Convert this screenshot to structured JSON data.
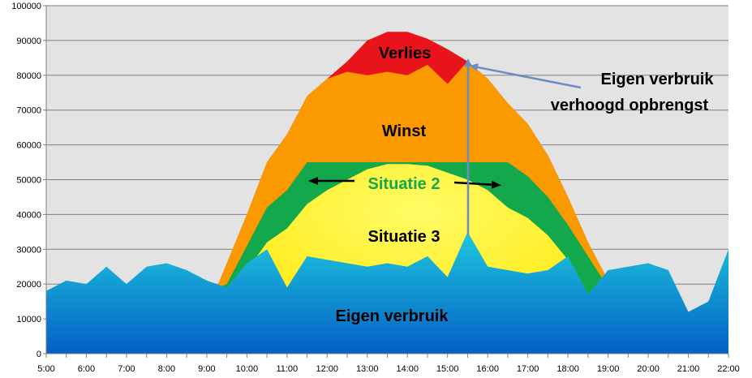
{
  "chart_data": {
    "type": "area",
    "title": "",
    "xlabel": "",
    "ylabel": "",
    "ylim": [
      0,
      100000
    ],
    "xlim": [
      "5:00",
      "22:00"
    ],
    "grid": true,
    "legend": "none",
    "y_ticks": [
      "0",
      "10000",
      "20000",
      "30000",
      "40000",
      "50000",
      "60000",
      "70000",
      "80000",
      "90000",
      "100000"
    ],
    "x_ticks": [
      "5:00",
      "6:00",
      "7:00",
      "8:00",
      "9:00",
      "10:00",
      "11:00",
      "12:00",
      "13:00",
      "14:00",
      "15:00",
      "16:00",
      "17:00",
      "18:00",
      "19:00",
      "20:00",
      "21:00",
      "22:00"
    ],
    "colors": {
      "verlies": "#e8131b",
      "winst": "#fb9900",
      "situatie2": "#13a84b",
      "situatie3": "#fff200",
      "eigen_verbruik_top": "#1ec8dd",
      "eigen_verbruik_bottom": "#0460c6",
      "plot_bg": "#e3e3e3",
      "arrow": "#6b8ec2"
    },
    "series": [
      {
        "key": "production",
        "x": [
          9.25,
          10,
          10.5,
          11,
          11.5,
          12,
          12.5,
          13,
          13.5,
          14,
          14.5,
          15,
          15.5,
          16,
          16.5,
          17,
          17.5,
          18,
          18.5,
          19
        ],
        "values": [
          19000,
          40000,
          55000,
          63000,
          74000,
          79000,
          84000,
          90000,
          92500,
          92500,
          90500,
          87500,
          84000,
          79000,
          72000,
          66000,
          57000,
          45000,
          32000,
          21000
        ]
      },
      {
        "key": "winst_top",
        "x": [
          9.25,
          10,
          10.5,
          11,
          11.5,
          12,
          12.5,
          13,
          13.5,
          14,
          14.5,
          15,
          15.5,
          16,
          16.5,
          17,
          17.5,
          18,
          18.5,
          19
        ],
        "values": [
          19000,
          40000,
          55000,
          63000,
          74000,
          79000,
          81000,
          80000,
          81000,
          80000,
          83000,
          77500,
          84000,
          79000,
          72000,
          66000,
          57000,
          45000,
          32000,
          21000
        ]
      },
      {
        "key": "situatie2_top",
        "x": [
          9.25,
          9.5,
          10,
          10.5,
          11,
          11.5,
          12,
          13,
          14,
          15,
          16,
          16.5,
          17,
          17.5,
          18,
          18.5,
          19
        ],
        "values": [
          19000,
          20000,
          31000,
          42000,
          47000,
          55000,
          55000,
          55000,
          55000,
          55000,
          55000,
          55000,
          51000,
          45000,
          37000,
          28000,
          19000
        ]
      },
      {
        "key": "situatie3_top",
        "x": [
          9.5,
          10,
          10.5,
          11,
          11.5,
          12,
          12.5,
          13,
          13.5,
          14,
          14.5,
          15,
          15.5,
          16,
          16.5,
          17,
          17.5,
          18,
          18.5,
          19
        ],
        "values": [
          19000,
          24000,
          32000,
          36000,
          43000,
          47000,
          50000,
          53000,
          54500,
          54500,
          54000,
          52000,
          50000,
          47000,
          42000,
          39000,
          34000,
          27000,
          17000,
          21000
        ]
      },
      {
        "key": "eigen_verbruik",
        "x": [
          5,
          5.5,
          6,
          6.5,
          7,
          7.5,
          8,
          8.5,
          9,
          9.25,
          9.5,
          10,
          10.5,
          11,
          11.5,
          12,
          12.5,
          13,
          13.5,
          14,
          14.5,
          15,
          15.5,
          16,
          16.5,
          17,
          17.5,
          18,
          18.5,
          19,
          19.5,
          20,
          20.5,
          21,
          21.5,
          22
        ],
        "values": [
          18000,
          21000,
          20000,
          25000,
          20000,
          25000,
          26000,
          24000,
          21000,
          20000,
          19000,
          26000,
          30000,
          19000,
          28000,
          27000,
          26000,
          25000,
          26000,
          25000,
          28000,
          22000,
          35000,
          25000,
          24000,
          23000,
          24000,
          28000,
          17000,
          24000,
          25000,
          26000,
          24000,
          12000,
          15000,
          30000
        ]
      }
    ],
    "annotations": {
      "verlies": "Verlies",
      "winst": "Winst",
      "situatie2": "Situatie 2",
      "situatie3": "Situatie 3",
      "eigen_verbruik": "Eigen verbruik",
      "callout_line1": "Eigen verbruik",
      "callout_line2": "verhoogd opbrengst"
    }
  }
}
